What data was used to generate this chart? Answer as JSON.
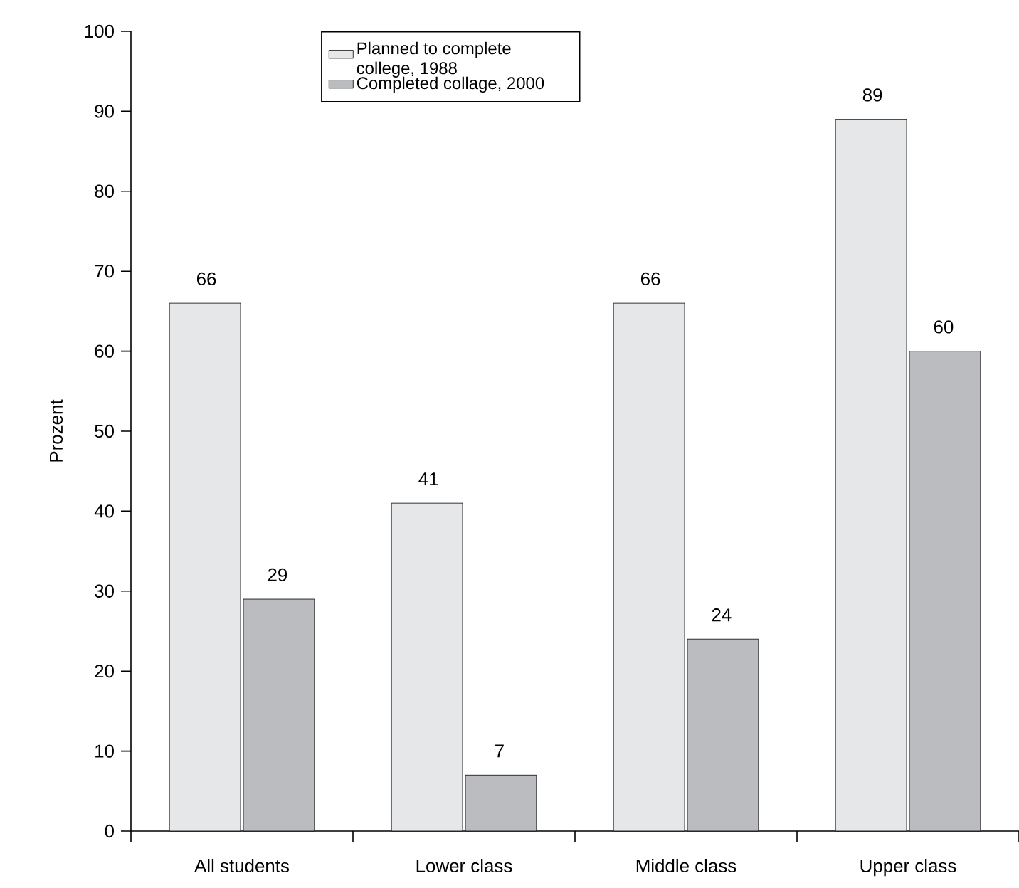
{
  "chart_data": {
    "type": "bar",
    "ylabel": "Prozent",
    "categories": [
      "All students",
      "Lower class",
      "Middle class",
      "Upper class"
    ],
    "series": [
      {
        "name": "Planned to complete college, 1988",
        "color": "#e6e7e9",
        "values": [
          66,
          41,
          66,
          89
        ]
      },
      {
        "name": "Completed collage, 2000",
        "color": "#bbbcc0",
        "values": [
          29,
          7,
          24,
          60
        ]
      }
    ],
    "ylim": [
      0,
      100
    ],
    "yticks": [
      0,
      10,
      20,
      30,
      40,
      50,
      60,
      70,
      80,
      90,
      100
    ],
    "data_labels": true,
    "legend": "top",
    "grid": false
  }
}
